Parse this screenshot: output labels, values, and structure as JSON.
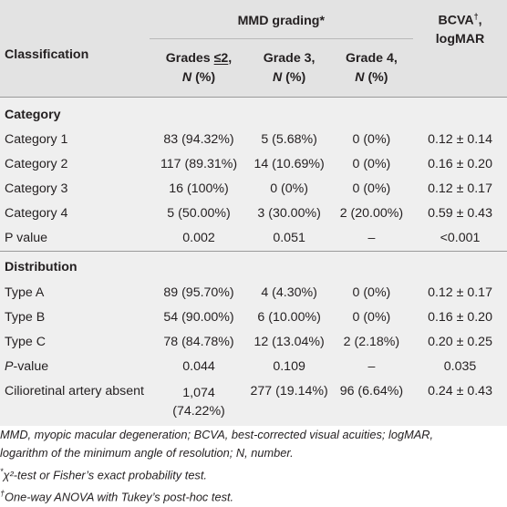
{
  "header": {
    "group_label": "MMD grading*",
    "bcva_label_line1": "BCVA",
    "bcva_label_dagger": "†",
    "bcva_label_line2": ", logMAR",
    "classification_label": "Classification",
    "grade_cols": [
      {
        "line1_prefix": "Grades ",
        "line1_sym": "≤2",
        "line1_suffix": ",",
        "line2": "N",
        "line2_suffix": " (%)"
      },
      {
        "line1_prefix": "Grade 3,",
        "line1_sym": "",
        "line1_suffix": "",
        "line2": "N",
        "line2_suffix": " (%)"
      },
      {
        "line1_prefix": "Grade 4,",
        "line1_sym": "",
        "line1_suffix": "",
        "line2": "N",
        "line2_suffix": " (%)"
      }
    ]
  },
  "sections": [
    {
      "title": "Category",
      "rows": [
        {
          "label": "Category 1",
          "g1": "83 (94.32%)",
          "g2": "5 (5.68%)",
          "g3": "0 (0%)",
          "bcva": "0.12 ± 0.14"
        },
        {
          "label": "Category 2",
          "g1": "117 (89.31%)",
          "g2": "14 (10.69%)",
          "g3": "0 (0%)",
          "bcva": "0.16 ± 0.20"
        },
        {
          "label": "Category 3",
          "g1": "16 (100%)",
          "g2": "0 (0%)",
          "g3": "0 (0%)",
          "bcva": "0.12 ± 0.17"
        },
        {
          "label": "Category 4",
          "g1": "5 (50.00%)",
          "g2": "3 (30.00%)",
          "g3": "2 (20.00%)",
          "bcva": "0.59 ± 0.43"
        },
        {
          "label": "P value",
          "g1": "0.002",
          "g2": "0.051",
          "g3": "–",
          "bcva": "<0.001"
        }
      ]
    },
    {
      "title": "Distribution",
      "rows": [
        {
          "label": "Type A",
          "g1": "89 (95.70%)",
          "g2": "4 (4.30%)",
          "g3": "0 (0%)",
          "bcva": "0.12 ± 0.17"
        },
        {
          "label": "Type B",
          "g1": "54 (90.00%)",
          "g2": "6 (10.00%)",
          "g3": "0 (0%)",
          "bcva": "0.16 ± 0.20"
        },
        {
          "label": "Type C",
          "g1": "78 (84.78%)",
          "g2": "12 (13.04%)",
          "g3": "2 (2.18%)",
          "bcva": "0.20 ± 0.25"
        },
        {
          "label_italic": "P",
          "label_rest": "-value",
          "g1": "0.044",
          "g2": "0.109",
          "g3": "–",
          "bcva": "0.035"
        },
        {
          "label": "Cilioretinal artery absent",
          "g1_line1": "1,074",
          "g1_line2": "(74.22%)",
          "g2": "277 (19.14%)",
          "g3": "96 (6.64%)",
          "bcva": "0.24 ± 0.43"
        }
      ]
    }
  ],
  "footnotes": {
    "abbrev_line1": "MMD, myopic macular degeneration; BCVA, best-corrected visual acuities; logMAR,",
    "abbrev_line2": "logarithm of the minimum angle of resolution; N, number.",
    "note1_mark": "*",
    "note1_text": "χ²-test or Fisher’s exact probability test.",
    "note2_mark": "†",
    "note2_text": "One-way ANOVA with Tukey’s post-hoc test."
  }
}
